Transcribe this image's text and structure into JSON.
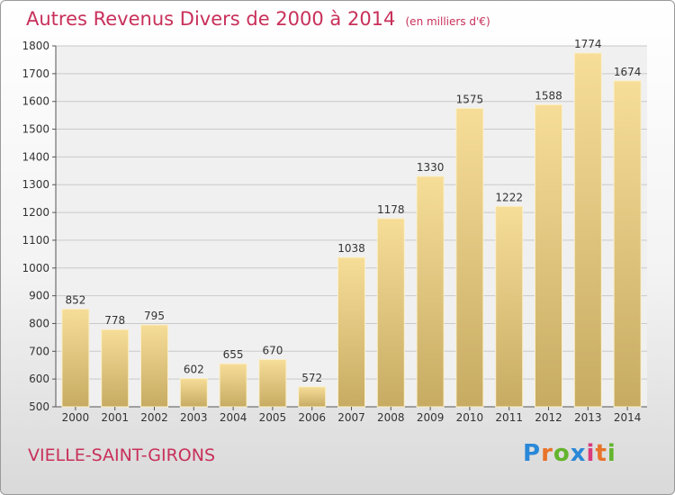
{
  "chart_data": {
    "type": "bar",
    "title": "Autres Revenus Divers de 2000 à 2014",
    "unit_note": "(en milliers d'€)",
    "categories": [
      "2000",
      "2001",
      "2002",
      "2003",
      "2004",
      "2005",
      "2006",
      "2007",
      "2008",
      "2009",
      "2010",
      "2011",
      "2012",
      "2013",
      "2014"
    ],
    "values": [
      852,
      778,
      795,
      602,
      655,
      670,
      572,
      1038,
      1178,
      1330,
      1575,
      1222,
      1588,
      1774,
      1674
    ],
    "ylim": [
      500,
      1800
    ],
    "yticks": [
      500,
      600,
      700,
      800,
      900,
      1000,
      1100,
      1200,
      1300,
      1400,
      1500,
      1600,
      1700,
      1800
    ],
    "grid": true,
    "bar_color": "#ecd38e",
    "xlabel": "",
    "ylabel": ""
  },
  "location": "VIELLE-SAINT-GIRONS",
  "brand": {
    "letters": [
      "P",
      "r",
      "o",
      "x",
      "i",
      "t",
      "i"
    ],
    "colors": [
      "#2a88d8",
      "#e8732a",
      "#63b42d",
      "#2a88d8",
      "#d93b7c",
      "#e8732a",
      "#63b42d"
    ]
  },
  "colors": {
    "accent": "#c8305a"
  }
}
